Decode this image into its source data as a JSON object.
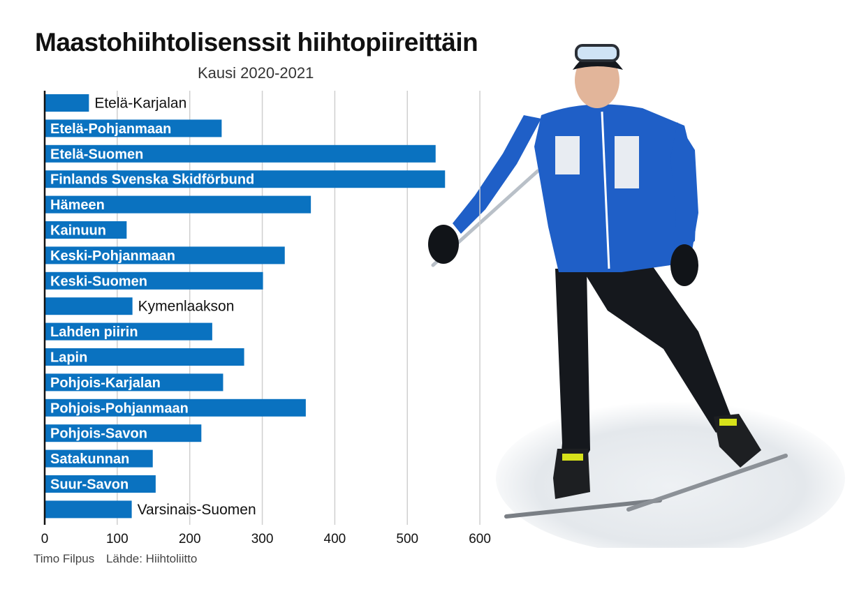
{
  "title": "Maastohiihtolisenssit hiihtopiireittäin",
  "subtitle": "Kausi 2020-2021",
  "credits": {
    "photographer": "Timo Filpus",
    "source": "Lähde: Hiihtoliitto"
  },
  "colors": {
    "bar": "#0a72c0",
    "grid": "#cfcfcf",
    "axis": "#111111",
    "label_inside": "#ffffff",
    "label_outside": "#111111"
  },
  "photo_icon": "cross-country-skier-photo",
  "chart_data": {
    "type": "bar",
    "orientation": "horizontal",
    "categories": [
      "Etelä-Karjalan",
      "Etelä-Pohjanmaan",
      "Etelä-Suomen",
      "Finlands Svenska Skidförbund",
      "Hämeen",
      "Kainuun",
      "Keski-Pohjanmaan",
      "Keski-Suomen",
      "Kymenlaakson",
      "Lahden piirin",
      "Lapin",
      "Pohjois-Karjalan",
      "Pohjois-Pohjanmaan",
      "Pohjois-Savon",
      "Satakunnan",
      "Suur-Savon",
      "Varsinais-Suomen"
    ],
    "values": [
      61,
      244,
      539,
      552,
      367,
      113,
      331,
      301,
      121,
      231,
      275,
      246,
      360,
      216,
      149,
      153,
      120
    ],
    "label_outside": [
      true,
      false,
      false,
      false,
      false,
      false,
      false,
      false,
      true,
      false,
      false,
      false,
      false,
      false,
      false,
      false,
      true
    ],
    "xlim": [
      0,
      700
    ],
    "ticks": [
      0,
      100,
      200,
      300,
      400,
      500,
      600
    ],
    "tick_labels": [
      "0",
      "100",
      "200",
      "300",
      "400",
      "500",
      "600"
    ],
    "grid": true,
    "xlabel": "",
    "ylabel": ""
  }
}
